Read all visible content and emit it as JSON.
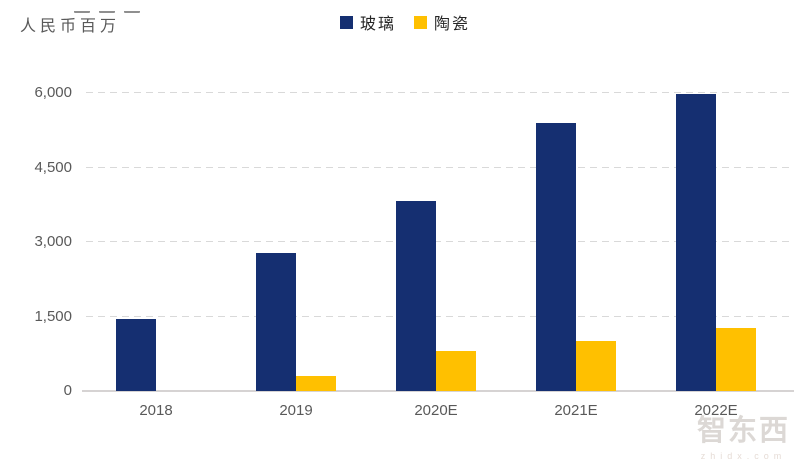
{
  "y_axis_title": "人民币百万",
  "legend": {
    "items": [
      {
        "label": "玻璃",
        "color": "#152F71"
      },
      {
        "label": "陶瓷",
        "color": "#FFC000"
      }
    ]
  },
  "chart_data": {
    "type": "bar",
    "title": "",
    "ylabel": "人民币百万",
    "xlabel": "",
    "categories": [
      "2018",
      "2019",
      "2020E",
      "2021E",
      "2022E"
    ],
    "series": [
      {
        "name": "玻璃",
        "color": "#152F71",
        "values": [
          1450,
          2780,
          3830,
          5390,
          5980
        ]
      },
      {
        "name": "陶瓷",
        "color": "#FFC000",
        "values": [
          0,
          300,
          800,
          1000,
          1270
        ]
      }
    ],
    "ylim": [
      0,
      6000
    ],
    "yticks": [
      0,
      1500,
      3000,
      4500,
      6000
    ],
    "ytick_labels": [
      "0",
      "1,500",
      "3,000",
      "4,500",
      "6,000"
    ],
    "grid": "horizontal-dashed",
    "legend_position": "top-center"
  },
  "watermark": {
    "logo": "智东西",
    "url": "zhidx.com"
  }
}
